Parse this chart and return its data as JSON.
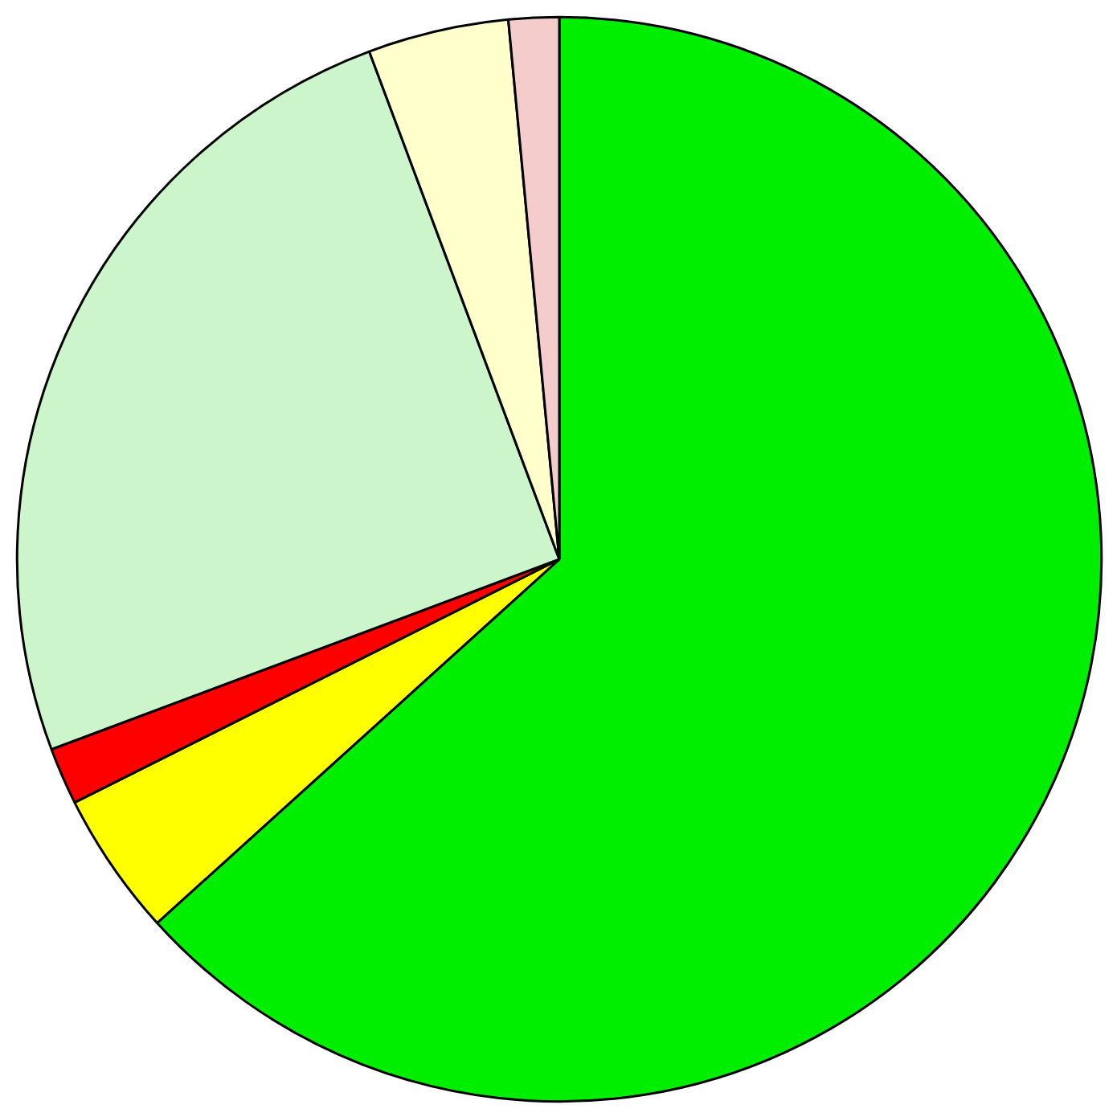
{
  "chart_data": {
    "type": "pie",
    "categories": [
      null,
      null,
      null,
      null,
      null,
      null
    ],
    "values": [
      63.3,
      4.3,
      1.7,
      25.0,
      4.2,
      1.5
    ],
    "colors": [
      "#00ee00",
      "#ffff00",
      "#ff0000",
      "#ccf5cc",
      "#ffffcc",
      "#f5cccc"
    ]
  }
}
